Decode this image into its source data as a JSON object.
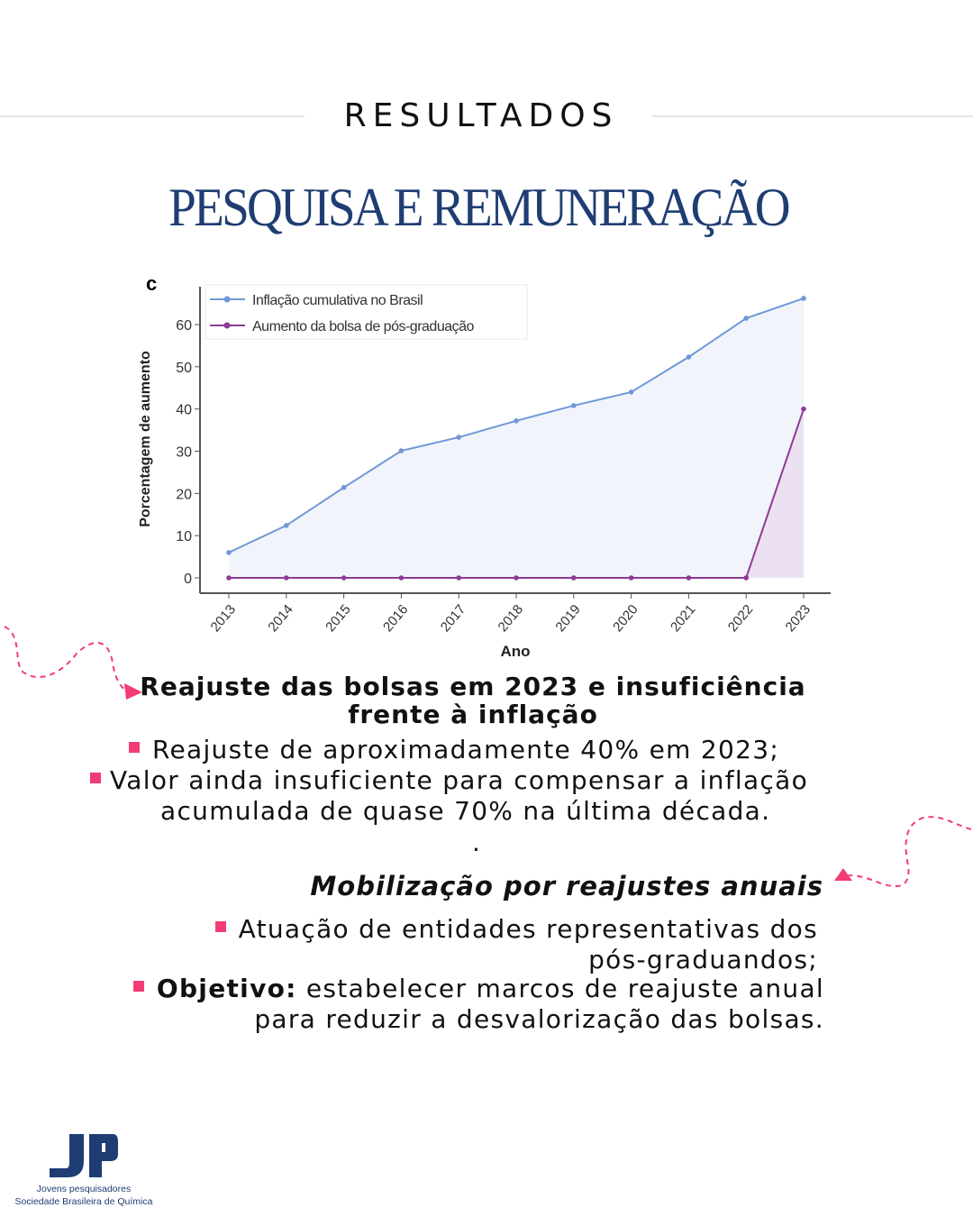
{
  "header": {
    "kicker": "RESULTADOS",
    "title": "PESQUISA E REMUNERAÇÃO"
  },
  "chart_data": {
    "type": "line",
    "panel_label": "c",
    "x": [
      2013,
      2014,
      2015,
      2016,
      2017,
      2018,
      2019,
      2020,
      2021,
      2022,
      2023
    ],
    "series": [
      {
        "name": "Inflação cumulativa no Brasil",
        "color": "#6f98d8",
        "fill": "#f2f4fb",
        "values": [
          6.0,
          12.4,
          21.4,
          30.1,
          33.3,
          37.2,
          40.8,
          44.0,
          52.3,
          61.5,
          66.2
        ]
      },
      {
        "name": "Aumento da bolsa de pós-graduação",
        "color": "#8e3a96",
        "fill": "#ebe1f0",
        "values": [
          0,
          0,
          0,
          0,
          0,
          0,
          0,
          0,
          0,
          0,
          40
        ]
      }
    ],
    "xlabel": "Ano",
    "ylabel": "Porcentagem de aumento",
    "yticks": [
      0,
      10,
      20,
      30,
      40,
      50,
      60
    ],
    "ylim": [
      0,
      67
    ],
    "legend": "top-left",
    "grid": false
  },
  "section1": {
    "heading_line1": "Reajuste das bolsas em 2023 e insuficiência",
    "heading_line2": "frente à inflação",
    "bullet1": "Reajuste de aproximadamente 40% em 2023;",
    "bullet2_line1": "Valor ainda insuficiente para compensar a inflação",
    "bullet2_line2": "acumulada de quase 70% na última década.",
    "dot": "."
  },
  "section2": {
    "heading": "Mobilização por reajustes anuais",
    "bullet1_line1": "Atuação de entidades representativas dos",
    "bullet1_line2": "pós-graduandos;",
    "bullet2_bold": "Objetivo:",
    "bullet2_line1": " estabelecer marcos de reajuste anual",
    "bullet2_line2": "para reduzir a desvalorização das bolsas."
  },
  "accent_color": "#f23d74",
  "logo": {
    "mark": "JP",
    "line1": "Jovens pesquisadores",
    "line2": "Sociedade Brasileira de Química"
  }
}
